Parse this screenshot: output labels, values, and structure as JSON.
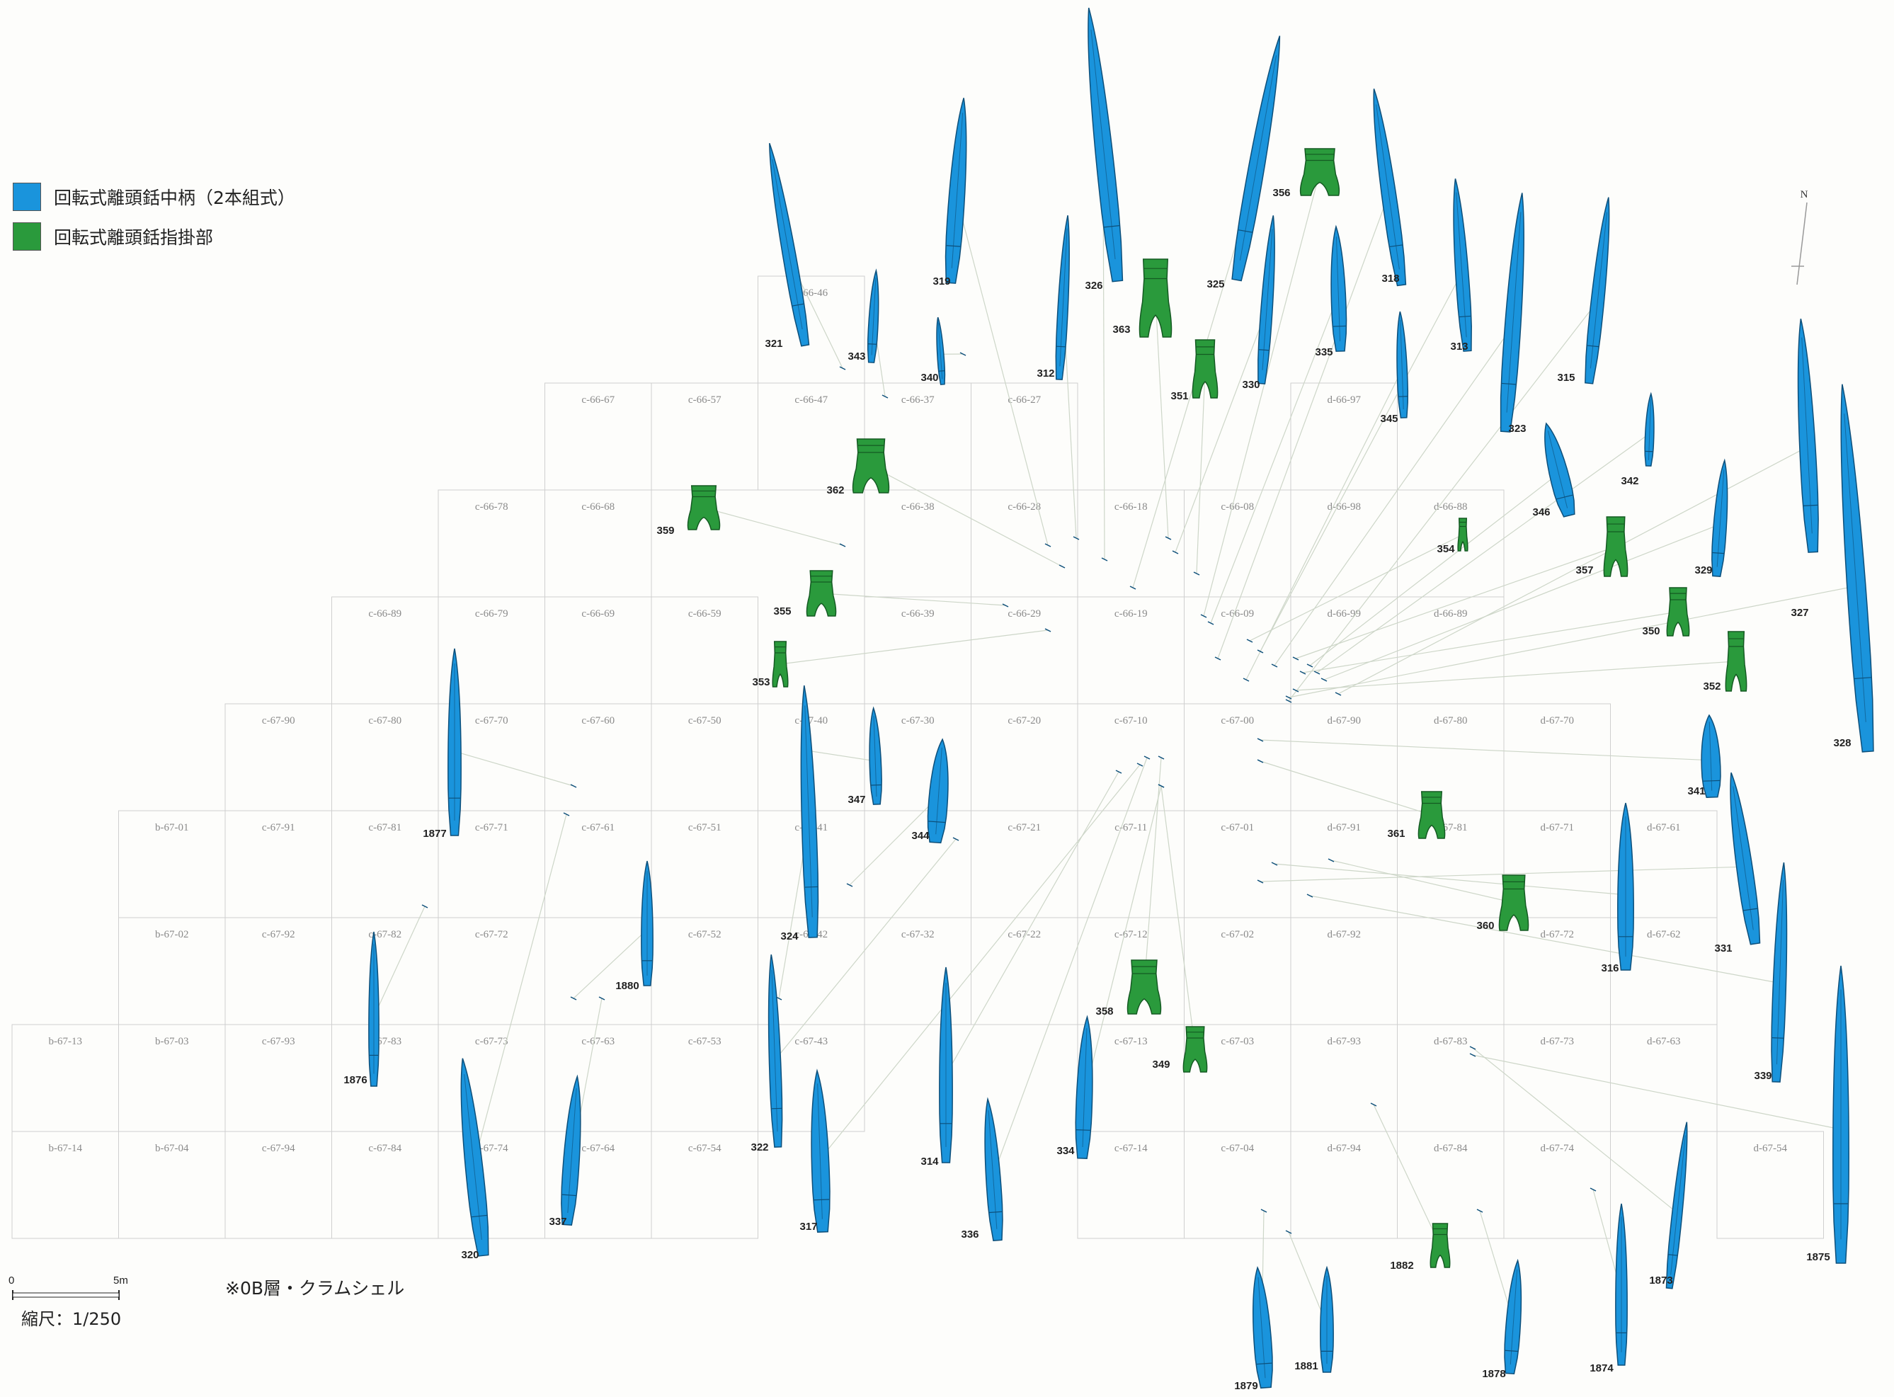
{
  "legend": [
    {
      "label": "回転式離頭銛中柄（2本組式）",
      "color": "#1a94dc"
    },
    {
      "label": "回転式離頭銛指掛部",
      "color": "#2a9a3c"
    }
  ],
  "note": "※0B層・クラムシェル",
  "scale": {
    "label": "縮尺：1/250",
    "start": "0",
    "end": "5m"
  },
  "north": "N",
  "grid": [
    {
      "row": 0,
      "cells": [
        {
          "col": 7,
          "label": "c-66-46"
        }
      ]
    },
    {
      "row": 1,
      "cells": [
        {
          "col": 5,
          "label": "c-66-67"
        },
        {
          "col": 6,
          "label": "c-66-57"
        },
        {
          "col": 7,
          "label": "c-66-47"
        },
        {
          "col": 8,
          "label": "c-66-37"
        },
        {
          "col": 9,
          "label": "c-66-27"
        },
        {
          "col": 12,
          "label": "d-66-97"
        }
      ]
    },
    {
      "row": 2,
      "cells": [
        {
          "col": 4,
          "label": "c-66-78"
        },
        {
          "col": 5,
          "label": "c-66-68"
        },
        {
          "col": 8,
          "label": "c-66-38"
        },
        {
          "col": 9,
          "label": "c-66-28"
        },
        {
          "col": 10,
          "label": "c-66-18"
        },
        {
          "col": 11,
          "label": "c-66-08"
        },
        {
          "col": 12,
          "label": "d-66-98"
        },
        {
          "col": 13,
          "label": "d-66-88"
        }
      ]
    },
    {
      "row": 3,
      "cells": [
        {
          "col": 3,
          "label": "c-66-89"
        },
        {
          "col": 4,
          "label": "c-66-79"
        },
        {
          "col": 5,
          "label": "c-66-69"
        },
        {
          "col": 6,
          "label": "c-66-59"
        },
        {
          "col": 8,
          "label": "c-66-39"
        },
        {
          "col": 9,
          "label": "c-66-29"
        },
        {
          "col": 10,
          "label": "c-66-19"
        },
        {
          "col": 11,
          "label": "c-66-09"
        },
        {
          "col": 12,
          "label": "d-66-99"
        },
        {
          "col": 13,
          "label": "d-66-89"
        }
      ]
    },
    {
      "row": 4,
      "cells": [
        {
          "col": 2,
          "label": "c-67-90"
        },
        {
          "col": 3,
          "label": "c-67-80"
        },
        {
          "col": 4,
          "label": "c-67-70"
        },
        {
          "col": 5,
          "label": "c-67-60"
        },
        {
          "col": 6,
          "label": "c-67-50"
        },
        {
          "col": 7,
          "label": "c-67-40"
        },
        {
          "col": 8,
          "label": "c-67-30"
        },
        {
          "col": 9,
          "label": "c-67-20"
        },
        {
          "col": 10,
          "label": "c-67-10"
        },
        {
          "col": 11,
          "label": "c-67-00"
        },
        {
          "col": 12,
          "label": "d-67-90"
        },
        {
          "col": 13,
          "label": "d-67-80"
        },
        {
          "col": 14,
          "label": "d-67-70"
        }
      ]
    },
    {
      "row": 5,
      "cells": [
        {
          "col": 1,
          "label": "b-67-01"
        },
        {
          "col": 2,
          "label": "c-67-91"
        },
        {
          "col": 3,
          "label": "c-67-81"
        },
        {
          "col": 4,
          "label": "c-67-71"
        },
        {
          "col": 5,
          "label": "c-67-61"
        },
        {
          "col": 6,
          "label": "c-67-51"
        },
        {
          "col": 7,
          "label": "c-67-41"
        },
        {
          "col": 9,
          "label": "c-67-21"
        },
        {
          "col": 10,
          "label": "c-67-11"
        },
        {
          "col": 11,
          "label": "c-67-01"
        },
        {
          "col": 12,
          "label": "d-67-91"
        },
        {
          "col": 13,
          "label": "d-67-81"
        },
        {
          "col": 14,
          "label": "d-67-71"
        },
        {
          "col": 15,
          "label": "d-67-61"
        }
      ]
    },
    {
      "row": 6,
      "cells": [
        {
          "col": 1,
          "label": "b-67-02"
        },
        {
          "col": 2,
          "label": "c-67-92"
        },
        {
          "col": 3,
          "label": "c-67-82"
        },
        {
          "col": 4,
          "label": "c-67-72"
        },
        {
          "col": 6,
          "label": "c-67-52"
        },
        {
          "col": 7,
          "label": "c-67-42"
        },
        {
          "col": 8,
          "label": "c-67-32"
        },
        {
          "col": 9,
          "label": "c-67-22"
        },
        {
          "col": 10,
          "label": "c-67-12"
        },
        {
          "col": 11,
          "label": "c-67-02"
        },
        {
          "col": 12,
          "label": "d-67-92"
        },
        {
          "col": 14,
          "label": "d-67-72"
        },
        {
          "col": 15,
          "label": "d-67-62"
        }
      ]
    },
    {
      "row": 7,
      "cells": [
        {
          "col": 0,
          "label": "b-67-13"
        },
        {
          "col": 1,
          "label": "b-67-03"
        },
        {
          "col": 2,
          "label": "c-67-93"
        },
        {
          "col": 3,
          "label": "c-67-83"
        },
        {
          "col": 4,
          "label": "c-67-73"
        },
        {
          "col": 5,
          "label": "c-67-63"
        },
        {
          "col": 6,
          "label": "c-67-53"
        },
        {
          "col": 7,
          "label": "c-67-43"
        },
        {
          "col": 10,
          "label": "c-67-13"
        },
        {
          "col": 11,
          "label": "c-67-03"
        },
        {
          "col": 12,
          "label": "d-67-93"
        },
        {
          "col": 13,
          "label": "d-67-83"
        },
        {
          "col": 14,
          "label": "d-67-73"
        },
        {
          "col": 15,
          "label": "d-67-63"
        }
      ]
    },
    {
      "row": 8,
      "cells": [
        {
          "col": 0,
          "label": "b-67-14"
        },
        {
          "col": 1,
          "label": "b-67-04"
        },
        {
          "col": 2,
          "label": "c-67-94"
        },
        {
          "col": 3,
          "label": "c-67-84"
        },
        {
          "col": 4,
          "label": "c-67-74"
        },
        {
          "col": 5,
          "label": "c-67-64"
        },
        {
          "col": 6,
          "label": "c-67-54"
        },
        {
          "col": 10,
          "label": "c-67-14"
        },
        {
          "col": 11,
          "label": "c-67-04"
        },
        {
          "col": 12,
          "label": "d-67-94"
        },
        {
          "col": 13,
          "label": "d-67-84"
        },
        {
          "col": 14,
          "label": "d-67-74"
        },
        {
          "col": 16,
          "label": "d-67-54"
        }
      ]
    }
  ],
  "artifacts": [
    {
      "id": "321",
      "type": "shaft"
    },
    {
      "id": "343",
      "type": "shaft"
    },
    {
      "id": "340",
      "type": "shaft"
    },
    {
      "id": "319",
      "type": "shaft"
    },
    {
      "id": "312",
      "type": "shaft"
    },
    {
      "id": "326",
      "type": "shaft"
    },
    {
      "id": "363",
      "type": "finger"
    },
    {
      "id": "351",
      "type": "finger"
    },
    {
      "id": "325",
      "type": "shaft"
    },
    {
      "id": "330",
      "type": "shaft"
    },
    {
      "id": "356",
      "type": "finger"
    },
    {
      "id": "335",
      "type": "shaft"
    },
    {
      "id": "318",
      "type": "shaft"
    },
    {
      "id": "345",
      "type": "shaft"
    },
    {
      "id": "313",
      "type": "shaft"
    },
    {
      "id": "323",
      "type": "shaft"
    },
    {
      "id": "315",
      "type": "shaft"
    },
    {
      "id": "346",
      "type": "shaft"
    },
    {
      "id": "342",
      "type": "shaft"
    },
    {
      "id": "354",
      "type": "finger"
    },
    {
      "id": "357",
      "type": "finger"
    },
    {
      "id": "329",
      "type": "shaft"
    },
    {
      "id": "327",
      "type": "shaft"
    },
    {
      "id": "350",
      "type": "finger"
    },
    {
      "id": "352",
      "type": "finger"
    },
    {
      "id": "328",
      "type": "shaft"
    },
    {
      "id": "341",
      "type": "shaft"
    },
    {
      "id": "362",
      "type": "finger"
    },
    {
      "id": "359",
      "type": "finger"
    },
    {
      "id": "355",
      "type": "finger"
    },
    {
      "id": "353",
      "type": "finger"
    },
    {
      "id": "1877",
      "type": "shaft"
    },
    {
      "id": "347",
      "type": "shaft"
    },
    {
      "id": "344",
      "type": "shaft"
    },
    {
      "id": "324",
      "type": "shaft"
    },
    {
      "id": "361",
      "type": "finger"
    },
    {
      "id": "360",
      "type": "finger"
    },
    {
      "id": "316",
      "type": "shaft"
    },
    {
      "id": "331",
      "type": "shaft"
    },
    {
      "id": "1880",
      "type": "shaft"
    },
    {
      "id": "1876",
      "type": "shaft"
    },
    {
      "id": "358",
      "type": "finger"
    },
    {
      "id": "349",
      "type": "finger"
    },
    {
      "id": "339",
      "type": "shaft"
    },
    {
      "id": "320",
      "type": "shaft"
    },
    {
      "id": "337",
      "type": "shaft"
    },
    {
      "id": "322",
      "type": "shaft"
    },
    {
      "id": "317",
      "type": "shaft"
    },
    {
      "id": "314",
      "type": "shaft"
    },
    {
      "id": "336",
      "type": "shaft"
    },
    {
      "id": "334",
      "type": "shaft"
    },
    {
      "id": "1882",
      "type": "finger"
    },
    {
      "id": "1873",
      "type": "shaft"
    },
    {
      "id": "1875",
      "type": "shaft"
    },
    {
      "id": "1879",
      "type": "shaft"
    },
    {
      "id": "1881",
      "type": "shaft"
    },
    {
      "id": "1878",
      "type": "shaft"
    },
    {
      "id": "1874",
      "type": "shaft"
    }
  ]
}
